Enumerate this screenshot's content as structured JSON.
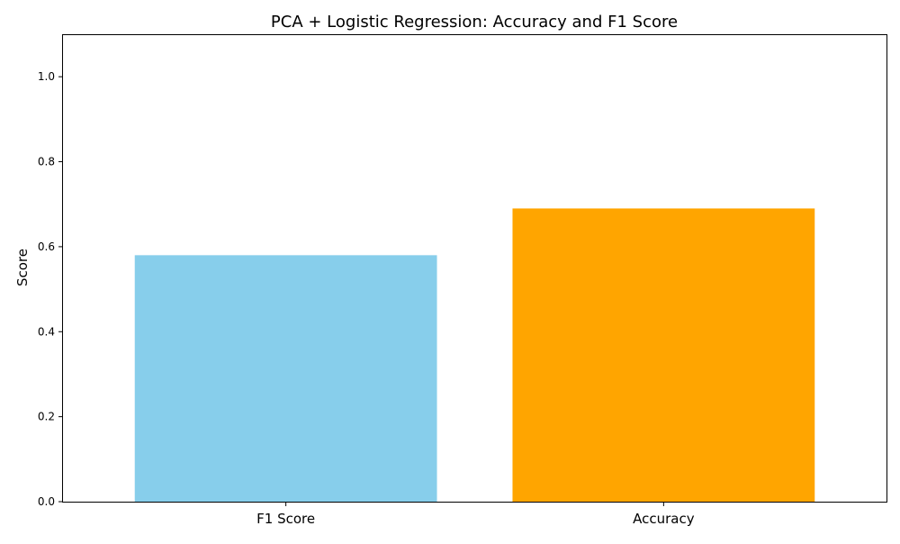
{
  "chart_data": {
    "type": "bar",
    "title": "PCA + Logistic Regression: Accuracy and F1 Score",
    "xlabel": "",
    "ylabel": "Score",
    "categories": [
      "F1 Score",
      "Accuracy"
    ],
    "values": [
      0.58,
      0.69
    ],
    "colors": [
      "#87ceeb",
      "#ffa500"
    ],
    "ylim": [
      0,
      1.1
    ],
    "yticks": [
      0.0,
      0.2,
      0.4,
      0.6,
      0.8,
      1.0
    ],
    "ytick_labels": [
      "0.0",
      "0.2",
      "0.4",
      "0.6",
      "0.8",
      "1.0"
    ],
    "grid": false,
    "legend": "none"
  }
}
